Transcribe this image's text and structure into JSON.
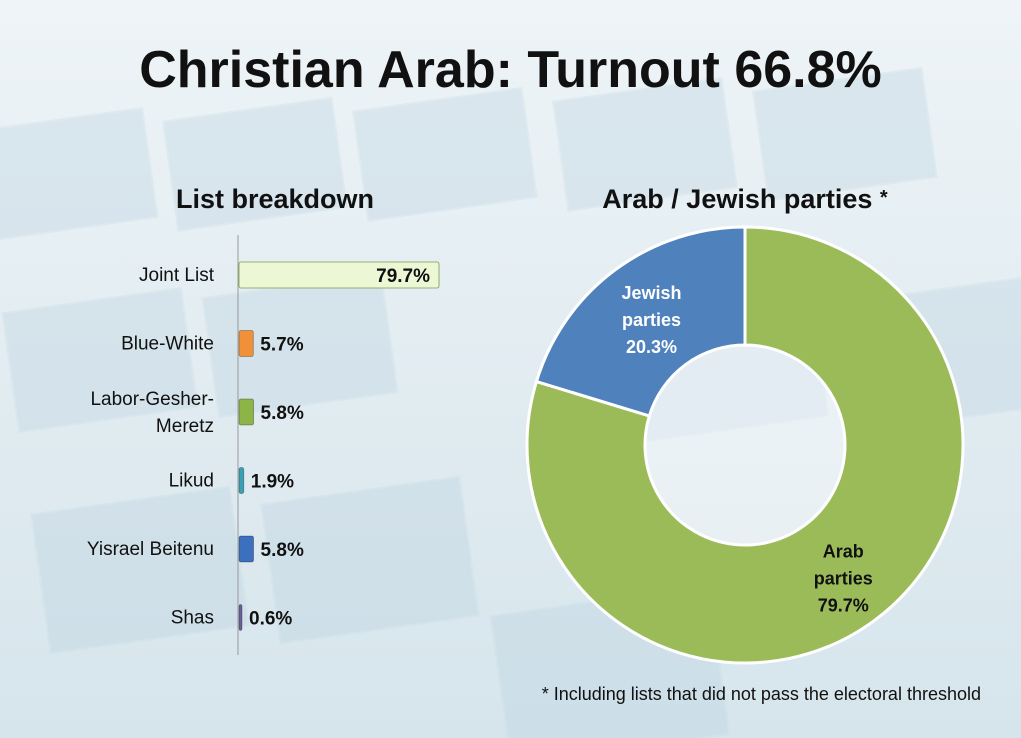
{
  "title": "Christian Arab: Turnout 66.8%",
  "bar_section_title": "List breakdown",
  "donut_section_title": "Arab / Jewish parties",
  "donut_title_marker": "*",
  "footnote": "* Including lists that did not pass the electoral threshold",
  "chart_data": [
    {
      "type": "bar",
      "orientation": "horizontal",
      "title": "List breakdown",
      "categories": [
        [
          "Joint List"
        ],
        [
          "Blue-White"
        ],
        [
          "Labor-Gesher-",
          "Meretz"
        ],
        [
          "Likud"
        ],
        [
          "Yisrael Beitenu"
        ],
        [
          "Shas"
        ]
      ],
      "values": [
        79.7,
        5.7,
        5.8,
        1.9,
        5.8,
        0.6
      ],
      "value_labels": [
        "79.7%",
        "5.7%",
        "5.8%",
        "1.9%",
        "5.8%",
        "0.6%"
      ],
      "colors": [
        "#ecf7d6",
        "#f0913a",
        "#8db446",
        "#3aa0b6",
        "#3d6fbf",
        "#6b5f9a"
      ],
      "label_inside": [
        true,
        false,
        false,
        false,
        false,
        false
      ],
      "xlim": [
        0,
        100
      ],
      "grid": false,
      "legend": "none"
    },
    {
      "type": "pie",
      "variant": "donut",
      "title": "Arab / Jewish parties",
      "slices": [
        {
          "label": [
            "Arab",
            "parties",
            "79.7%"
          ],
          "value": 79.7,
          "color": "#9bbb59"
        },
        {
          "label": [
            "Jewish",
            "parties",
            "20.3%"
          ],
          "value": 20.3,
          "color": "#4f81bd"
        }
      ],
      "legend": "none"
    }
  ]
}
